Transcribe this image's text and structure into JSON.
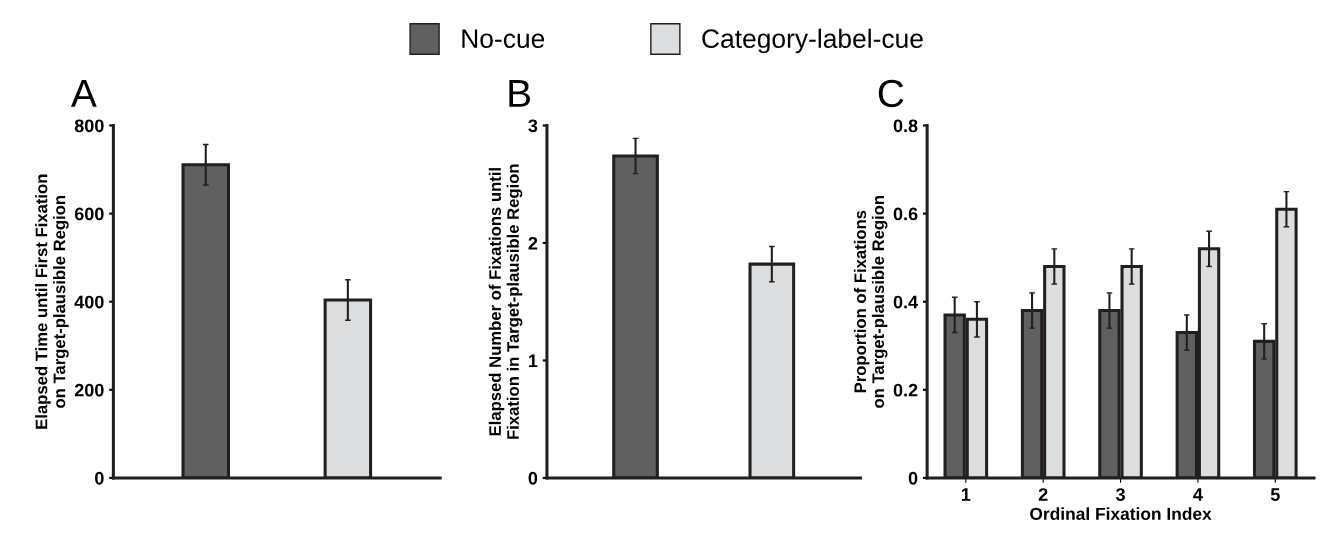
{
  "chart_data": [
    {
      "type": "bar",
      "title": "A",
      "ylabel": "Elapsed Time until First Fixation on Target-plausible Region",
      "categories": [
        null,
        null
      ],
      "values": [
        711,
        404
      ],
      "errors": [
        46,
        46
      ],
      "colors": [
        "#606060",
        "#dcdddf"
      ],
      "ylim": [
        0,
        800
      ],
      "yticks": [
        0,
        200,
        400,
        600,
        800
      ]
    },
    {
      "type": "bar",
      "title": "B",
      "ylabel": "Elapsed Number of Fixations until Fixation in Target-plausible Region",
      "categories": [
        null,
        null
      ],
      "values": [
        2.74,
        1.82
      ],
      "errors": [
        0.15,
        0.15
      ],
      "colors": [
        "#606060",
        "#dcdddf"
      ],
      "ylim": [
        0,
        3
      ],
      "yticks": [
        0,
        1,
        2,
        3
      ]
    },
    {
      "type": "bar",
      "title": "C",
      "ylabel": "Proportion of Fixations on Target-plausible Region",
      "xlabel": "Ordinal Fixation Index",
      "categories": [
        "1",
        "2",
        "3",
        "4",
        "5"
      ],
      "legend": "top",
      "series": [
        {
          "name": "No-cue",
          "color": "#606060",
          "values": [
            0.37,
            0.38,
            0.38,
            0.33,
            0.31
          ],
          "errors": [
            0.04,
            0.04,
            0.04,
            0.04,
            0.04
          ]
        },
        {
          "name": "Category-label-cue",
          "color": "#dcdddf",
          "values": [
            0.36,
            0.48,
            0.48,
            0.52,
            0.61
          ],
          "errors": [
            0.04,
            0.04,
            0.04,
            0.04,
            0.04
          ]
        }
      ],
      "ylim": [
        0,
        0.8
      ],
      "yticks": [
        {
          "value": 0,
          "label": "0"
        },
        0.2,
        0.4,
        0.6,
        0.8
      ]
    }
  ]
}
